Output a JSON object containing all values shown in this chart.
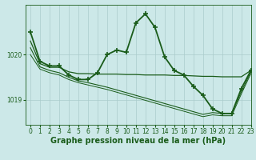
{
  "title": "Graphe pression niveau de la mer (hPa)",
  "background_color": "#cce8e8",
  "grid_color": "#aacccc",
  "line_color": "#1a5c1a",
  "xlim": [
    -0.5,
    23
  ],
  "ylim": [
    1018.45,
    1021.1
  ],
  "yticks": [
    1019,
    1020
  ],
  "xticks": [
    0,
    1,
    2,
    3,
    4,
    5,
    6,
    7,
    8,
    9,
    10,
    11,
    12,
    13,
    14,
    15,
    16,
    17,
    18,
    19,
    20,
    21,
    22,
    23
  ],
  "series": [
    {
      "x": [
        0,
        1,
        2,
        3,
        4,
        5,
        6,
        7,
        8,
        9,
        10,
        11,
        12,
        13,
        14,
        15,
        16,
        17,
        18,
        19,
        20,
        21,
        22,
        23
      ],
      "y": [
        1020.5,
        1019.85,
        1019.75,
        1019.75,
        1019.55,
        1019.45,
        1019.45,
        1019.6,
        1020.0,
        1020.1,
        1020.05,
        1020.7,
        1020.9,
        1020.6,
        1019.95,
        1019.65,
        1019.55,
        1019.3,
        1019.1,
        1018.8,
        1018.7,
        1018.7,
        1019.25,
        1019.65
      ],
      "marker": "+",
      "linewidth": 1.3,
      "markersize": 5,
      "markeredgewidth": 1.2
    },
    {
      "x": [
        0,
        1,
        2,
        3,
        4,
        5,
        6,
        7,
        8,
        9,
        10,
        11,
        12,
        13,
        14,
        15,
        16,
        17,
        18,
        19,
        20,
        21,
        22,
        23
      ],
      "y": [
        1020.3,
        1019.8,
        1019.72,
        1019.72,
        1019.62,
        1019.58,
        1019.58,
        1019.57,
        1019.57,
        1019.57,
        1019.56,
        1019.56,
        1019.55,
        1019.55,
        1019.55,
        1019.54,
        1019.54,
        1019.53,
        1019.52,
        1019.52,
        1019.51,
        1019.51,
        1019.51,
        1019.65
      ],
      "marker": "None",
      "linewidth": 0.9,
      "markersize": 0,
      "markeredgewidth": 0.5
    },
    {
      "x": [
        0,
        1,
        2,
        3,
        4,
        5,
        6,
        7,
        8,
        9,
        10,
        11,
        12,
        13,
        14,
        15,
        16,
        17,
        18,
        19,
        20,
        21,
        22,
        23
      ],
      "y": [
        1020.15,
        1019.73,
        1019.65,
        1019.6,
        1019.5,
        1019.42,
        1019.38,
        1019.33,
        1019.28,
        1019.22,
        1019.16,
        1019.1,
        1019.04,
        1018.98,
        1018.92,
        1018.86,
        1018.8,
        1018.74,
        1018.68,
        1018.72,
        1018.7,
        1018.7,
        1019.18,
        1019.62
      ],
      "marker": "None",
      "linewidth": 0.8,
      "markersize": 0,
      "markeredgewidth": 0.5
    },
    {
      "x": [
        0,
        1,
        2,
        3,
        4,
        5,
        6,
        7,
        8,
        9,
        10,
        11,
        12,
        13,
        14,
        15,
        16,
        17,
        18,
        19,
        20,
        21,
        22,
        23
      ],
      "y": [
        1020.0,
        1019.68,
        1019.6,
        1019.55,
        1019.45,
        1019.38,
        1019.33,
        1019.28,
        1019.23,
        1019.17,
        1019.11,
        1019.05,
        1018.99,
        1018.93,
        1018.87,
        1018.81,
        1018.75,
        1018.69,
        1018.63,
        1018.67,
        1018.65,
        1018.65,
        1019.13,
        1019.58
      ],
      "marker": "None",
      "linewidth": 0.7,
      "markersize": 0,
      "markeredgewidth": 0.5
    }
  ],
  "title_fontsize": 7,
  "tick_fontsize": 5.5
}
